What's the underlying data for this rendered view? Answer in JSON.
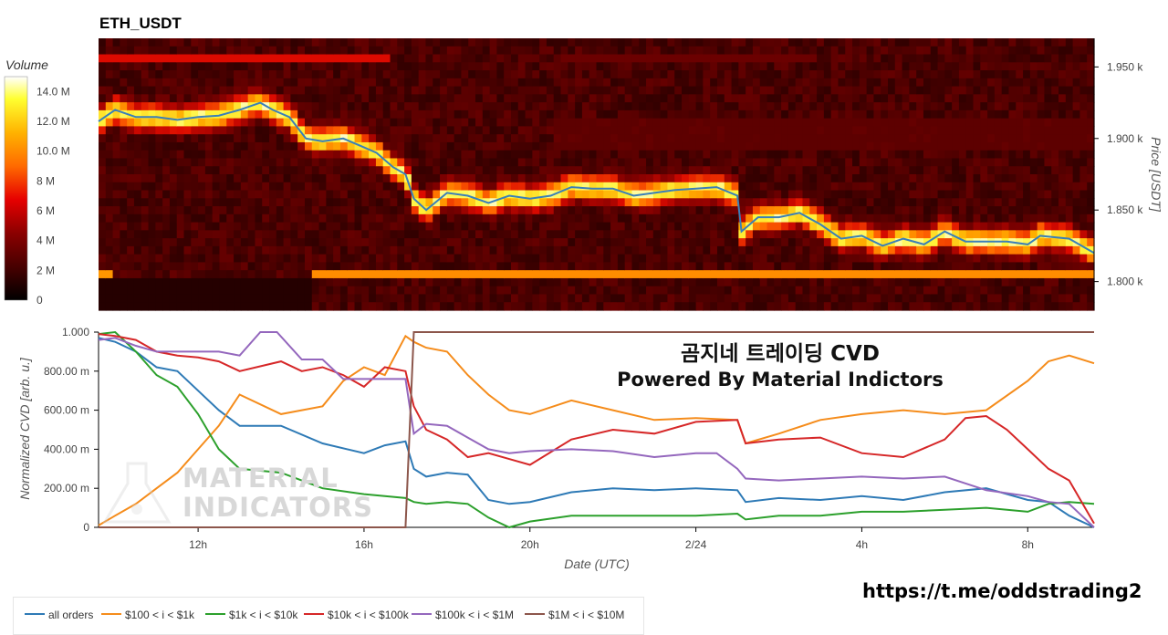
{
  "chart_data": [
    {
      "type": "heatmap",
      "title": "ETH_USDT",
      "ylabel": "Price [USDT]",
      "colorbar_label": "Volume",
      "colorbar_ticks": [
        "0",
        "2 M",
        "4 M",
        "6 M",
        "8 M",
        "10.0 M",
        "12.0 M",
        "14.0 M"
      ],
      "colorbar_max": 15,
      "price_ticks": [
        "1.800 k",
        "1.850 k",
        "1.900 k",
        "1.950 k"
      ],
      "ylim": [
        1780,
        1970
      ],
      "price_line": {
        "t": [
          9.6,
          10.0,
          10.5,
          11.0,
          11.5,
          12.0,
          12.5,
          13.0,
          13.5,
          13.8,
          14.2,
          14.6,
          15.0,
          15.5,
          15.9,
          16.3,
          16.7,
          17.0,
          17.2,
          17.5,
          18.0,
          18.5,
          19.0,
          19.5,
          20.0,
          20.5,
          21.0,
          21.5,
          22.0,
          22.5,
          23.0,
          23.5,
          24.0,
          24.5,
          25.0,
          25.1,
          25.5,
          26.0,
          26.5,
          27.0,
          27.5,
          28.0,
          28.5,
          29.0,
          29.5,
          30.0,
          30.5,
          31.0,
          31.5,
          32.0,
          32.3,
          33.0,
          33.6
        ],
        "price": [
          1912,
          1920,
          1915,
          1915,
          1913,
          1915,
          1916,
          1920,
          1925,
          1920,
          1915,
          1900,
          1898,
          1900,
          1895,
          1890,
          1880,
          1875,
          1858,
          1850,
          1862,
          1860,
          1855,
          1860,
          1858,
          1860,
          1866,
          1865,
          1865,
          1860,
          1862,
          1864,
          1865,
          1866,
          1860,
          1835,
          1845,
          1845,
          1848,
          1840,
          1830,
          1832,
          1825,
          1830,
          1826,
          1835,
          1828,
          1828,
          1828,
          1826,
          1832,
          1830,
          1820
        ]
      }
    },
    {
      "type": "line",
      "xlabel": "Date (UTC)",
      "ylabel": "Normalized CVD [arb. u.]",
      "ylim": [
        0,
        1
      ],
      "yticks": [
        "0",
        "200.00 m",
        "400.00 m",
        "600.00 m",
        "800.00 m",
        "1.000"
      ],
      "xticks": [
        "12h",
        "16h",
        "20h",
        "2/24",
        "4h",
        "8h"
      ],
      "xlim": [
        9.6,
        33.6
      ],
      "series": [
        {
          "name": "all orders",
          "color": "#2e7ab6",
          "t": [
            9.6,
            10.0,
            10.5,
            11.0,
            11.5,
            12.0,
            12.5,
            13.0,
            14.0,
            15.0,
            16.0,
            16.5,
            17.0,
            17.2,
            17.5,
            18.0,
            18.5,
            19.0,
            19.5,
            20.0,
            21.0,
            22.0,
            23.0,
            24.0,
            25.0,
            25.2,
            26.0,
            27.0,
            28.0,
            29.0,
            30.0,
            31.0,
            32.0,
            32.5,
            33.0,
            33.6
          ],
          "values": [
            0.97,
            0.95,
            0.9,
            0.82,
            0.8,
            0.7,
            0.6,
            0.52,
            0.52,
            0.43,
            0.38,
            0.42,
            0.44,
            0.3,
            0.26,
            0.28,
            0.27,
            0.14,
            0.12,
            0.13,
            0.18,
            0.2,
            0.19,
            0.2,
            0.19,
            0.13,
            0.15,
            0.14,
            0.16,
            0.14,
            0.18,
            0.2,
            0.14,
            0.13,
            0.06,
            0.0
          ]
        },
        {
          "name": "$100 < i < $1k",
          "color": "#f58c1b",
          "t": [
            9.6,
            10.0,
            10.5,
            11.0,
            11.5,
            12.0,
            12.5,
            13.0,
            14.0,
            15.0,
            15.5,
            16.0,
            16.5,
            17.0,
            17.2,
            17.5,
            18.0,
            18.5,
            19.0,
            19.5,
            20.0,
            21.0,
            22.0,
            23.0,
            24.0,
            25.0,
            25.2,
            26.0,
            27.0,
            28.0,
            29.0,
            30.0,
            31.0,
            32.0,
            32.5,
            33.0,
            33.6
          ],
          "values": [
            0.01,
            0.06,
            0.12,
            0.2,
            0.28,
            0.4,
            0.52,
            0.68,
            0.58,
            0.62,
            0.75,
            0.82,
            0.78,
            0.98,
            0.95,
            0.92,
            0.9,
            0.78,
            0.68,
            0.6,
            0.58,
            0.65,
            0.6,
            0.55,
            0.56,
            0.55,
            0.43,
            0.48,
            0.55,
            0.58,
            0.6,
            0.58,
            0.6,
            0.75,
            0.85,
            0.88,
            0.84
          ]
        },
        {
          "name": "$1k < i < $10k",
          "color": "#2ca02c",
          "t": [
            9.6,
            10.0,
            10.5,
            11.0,
            11.5,
            12.0,
            12.5,
            13.0,
            14.0,
            15.0,
            16.0,
            16.5,
            17.0,
            17.2,
            17.5,
            18.0,
            18.5,
            19.0,
            19.5,
            20.0,
            21.0,
            22.0,
            23.0,
            24.0,
            25.0,
            25.2,
            26.0,
            27.0,
            28.0,
            29.0,
            30.0,
            31.0,
            32.0,
            32.5,
            33.0,
            33.6
          ],
          "values": [
            0.99,
            1.0,
            0.9,
            0.78,
            0.72,
            0.58,
            0.4,
            0.3,
            0.28,
            0.2,
            0.17,
            0.16,
            0.15,
            0.13,
            0.12,
            0.13,
            0.12,
            0.05,
            0.0,
            0.03,
            0.06,
            0.06,
            0.06,
            0.06,
            0.07,
            0.04,
            0.06,
            0.06,
            0.08,
            0.08,
            0.09,
            0.1,
            0.08,
            0.12,
            0.13,
            0.12
          ]
        },
        {
          "name": "$10k < i < $100k",
          "color": "#d62728",
          "t": [
            9.6,
            10.0,
            10.5,
            11.0,
            11.5,
            12.0,
            12.5,
            13.0,
            14.0,
            14.5,
            15.0,
            15.5,
            16.0,
            16.5,
            17.0,
            17.2,
            17.5,
            18.0,
            18.5,
            19.0,
            19.5,
            20.0,
            21.0,
            22.0,
            23.0,
            24.0,
            25.0,
            25.2,
            26.0,
            27.0,
            28.0,
            29.0,
            30.0,
            30.5,
            31.0,
            31.5,
            32.0,
            32.5,
            33.0,
            33.6
          ],
          "values": [
            0.99,
            0.98,
            0.96,
            0.9,
            0.88,
            0.87,
            0.85,
            0.8,
            0.85,
            0.8,
            0.82,
            0.78,
            0.72,
            0.82,
            0.8,
            0.62,
            0.5,
            0.45,
            0.36,
            0.38,
            0.35,
            0.32,
            0.45,
            0.5,
            0.48,
            0.54,
            0.55,
            0.43,
            0.45,
            0.46,
            0.38,
            0.36,
            0.45,
            0.56,
            0.57,
            0.5,
            0.4,
            0.3,
            0.24,
            0.02
          ]
        },
        {
          "name": "$100k < i < $1M",
          "color": "#9467bd",
          "t": [
            9.6,
            10.0,
            10.5,
            11.0,
            11.5,
            12.0,
            12.5,
            13.0,
            13.5,
            13.9,
            14.5,
            15.0,
            15.5,
            16.0,
            16.5,
            17.0,
            17.2,
            17.5,
            18.0,
            18.5,
            19.0,
            19.5,
            20.0,
            21.0,
            22.0,
            23.0,
            24.0,
            24.5,
            25.0,
            25.2,
            26.0,
            27.0,
            28.0,
            29.0,
            30.0,
            31.0,
            32.0,
            32.5,
            33.0,
            33.6
          ],
          "values": [
            0.96,
            0.97,
            0.93,
            0.9,
            0.9,
            0.9,
            0.9,
            0.88,
            1.0,
            1.0,
            0.86,
            0.86,
            0.76,
            0.76,
            0.76,
            0.76,
            0.48,
            0.53,
            0.52,
            0.46,
            0.4,
            0.38,
            0.39,
            0.4,
            0.39,
            0.36,
            0.38,
            0.38,
            0.3,
            0.25,
            0.24,
            0.25,
            0.26,
            0.25,
            0.26,
            0.19,
            0.16,
            0.13,
            0.12,
            0.0
          ]
        },
        {
          "name": "$1M < i < $10M",
          "color": "#8c564b",
          "t": [
            9.6,
            17.0,
            17.2,
            17.3,
            33.6
          ],
          "values": [
            0.0,
            0.0,
            1.0,
            1.0,
            1.0
          ]
        }
      ]
    }
  ],
  "overlay": {
    "title": "곰지네 트레이딩 CVD",
    "subtitle": "Powered By Material Indictors",
    "watermark_line1": "MATERIAL",
    "watermark_line2": "INDICATORS",
    "link": "https://t.me/oddstrading2"
  }
}
